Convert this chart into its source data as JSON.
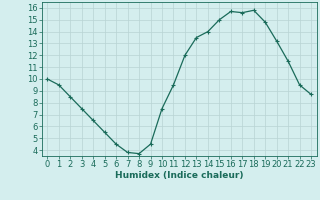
{
  "x": [
    0,
    1,
    2,
    3,
    4,
    5,
    6,
    7,
    8,
    9,
    10,
    11,
    12,
    13,
    14,
    15,
    16,
    17,
    18,
    19,
    20,
    21,
    22,
    23
  ],
  "y": [
    10,
    9.5,
    8.5,
    7.5,
    6.5,
    5.5,
    4.5,
    3.8,
    3.7,
    4.5,
    7.5,
    9.5,
    12.0,
    13.5,
    14.0,
    15.0,
    15.7,
    15.6,
    15.8,
    14.8,
    13.2,
    11.5,
    9.5,
    8.7
  ],
  "line_color": "#1a6b5a",
  "marker": "+",
  "marker_size": 3,
  "linewidth": 0.9,
  "bg_color": "#d4eeee",
  "xlabel": "Humidex (Indice chaleur)",
  "xlim": [
    -0.5,
    23.5
  ],
  "ylim": [
    3.5,
    16.5
  ],
  "yticks": [
    4,
    5,
    6,
    7,
    8,
    9,
    10,
    11,
    12,
    13,
    14,
    15,
    16
  ],
  "xticks": [
    0,
    1,
    2,
    3,
    4,
    5,
    6,
    7,
    8,
    9,
    10,
    11,
    12,
    13,
    14,
    15,
    16,
    17,
    18,
    19,
    20,
    21,
    22,
    23
  ],
  "xlabel_fontsize": 6.5,
  "tick_fontsize": 6,
  "grid_color": "#b8d4d4",
  "spine_color": "#1a6b5a"
}
